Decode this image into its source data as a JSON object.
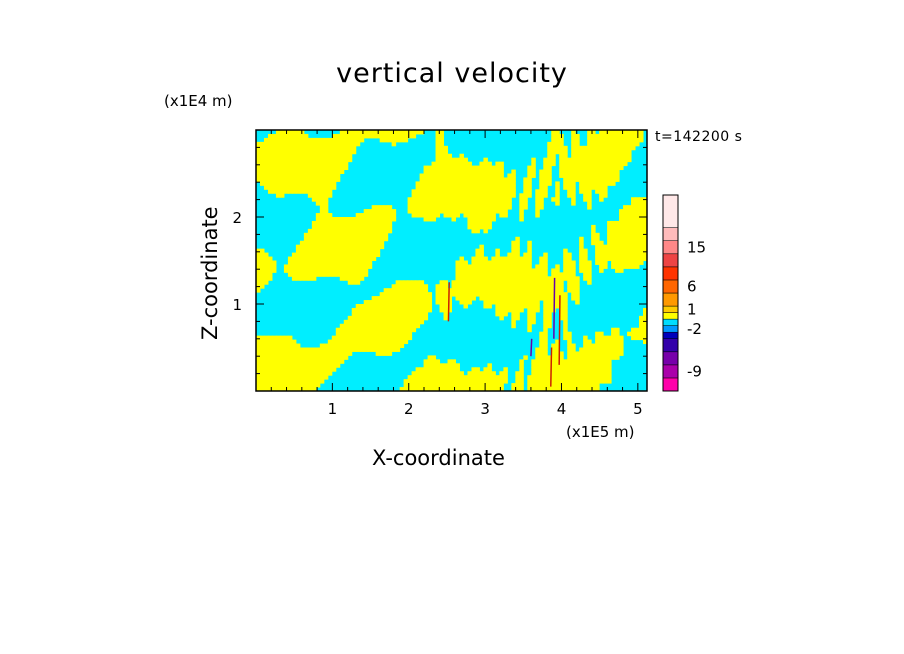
{
  "chart_data": {
    "type": "heatmap",
    "title": "vertical velocity",
    "xlabel": "X-coordinate",
    "ylabel": "Z-coordinate",
    "x_unit": "(x1E5 m)",
    "z_unit": "(x1E4 m)",
    "timestamp": "t=142200 s",
    "xlim": [
      0,
      5.12
    ],
    "ylim": [
      0,
      3.0
    ],
    "x_ticks": [
      "1",
      "2",
      "3",
      "4",
      "5"
    ],
    "y_ticks": [
      "1",
      "2"
    ],
    "grid": false,
    "colorbar": {
      "labels": [
        "15",
        "6",
        "1",
        "-2",
        "-9"
      ],
      "levels": [
        {
          "color": "#ff00aa"
        },
        {
          "color": "#aa00aa"
        },
        {
          "color": "#7700aa"
        },
        {
          "color": "#3300aa"
        },
        {
          "color": "#0000bb"
        },
        {
          "color": "#0099ff"
        },
        {
          "color": "#00ddff"
        },
        {
          "color": "#ffff00"
        },
        {
          "color": "#ffcc00"
        },
        {
          "color": "#ff9900"
        },
        {
          "color": "#ff6600"
        },
        {
          "color": "#ff3300"
        },
        {
          "color": "#ee4444"
        },
        {
          "color": "#ff8888"
        },
        {
          "color": "#ffbbbb"
        },
        {
          "color": "#ffe8e8"
        }
      ]
    },
    "dominant_colors": {
      "positive": "#ffff00",
      "negative": "#00eeff",
      "strong_negative": "#6600aa",
      "strong_positive": "#cc2200"
    }
  }
}
